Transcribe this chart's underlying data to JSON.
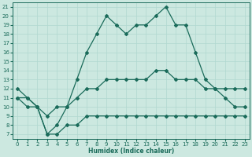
{
  "xlabel": "Humidex (Indice chaleur)",
  "bg_color": "#cce8e0",
  "line_color": "#1a6b5a",
  "grid_color": "#b0d8d0",
  "xlim": [
    -0.5,
    23.5
  ],
  "ylim": [
    6.5,
    21.5
  ],
  "yticks": [
    7,
    8,
    9,
    10,
    11,
    12,
    13,
    14,
    15,
    16,
    17,
    18,
    19,
    20,
    21
  ],
  "xticks": [
    0,
    1,
    2,
    3,
    4,
    5,
    6,
    7,
    8,
    9,
    10,
    11,
    12,
    13,
    14,
    15,
    16,
    17,
    18,
    19,
    20,
    21,
    22,
    23
  ],
  "x": [
    0,
    1,
    2,
    3,
    4,
    5,
    6,
    7,
    8,
    9,
    10,
    11,
    12,
    13,
    14,
    15,
    16,
    17,
    18,
    19,
    20,
    21,
    22,
    23
  ],
  "y_max": [
    12,
    11,
    10,
    7,
    8,
    10,
    13,
    16,
    18,
    20,
    19,
    18,
    19,
    19,
    20,
    21,
    19,
    19,
    16,
    13,
    12,
    11,
    10,
    10
  ],
  "y_mean": [
    11,
    11,
    10,
    9,
    10,
    10,
    11,
    12,
    12,
    13,
    13,
    13,
    13,
    13,
    14,
    14,
    13,
    13,
    13,
    12,
    12,
    12,
    12,
    12
  ],
  "y_min": [
    11,
    10,
    10,
    7,
    7,
    8,
    8,
    9,
    9,
    9,
    9,
    9,
    9,
    9,
    9,
    9,
    9,
    9,
    9,
    9,
    9,
    9,
    9,
    9
  ],
  "linewidth": 0.9,
  "markersize": 2.0
}
